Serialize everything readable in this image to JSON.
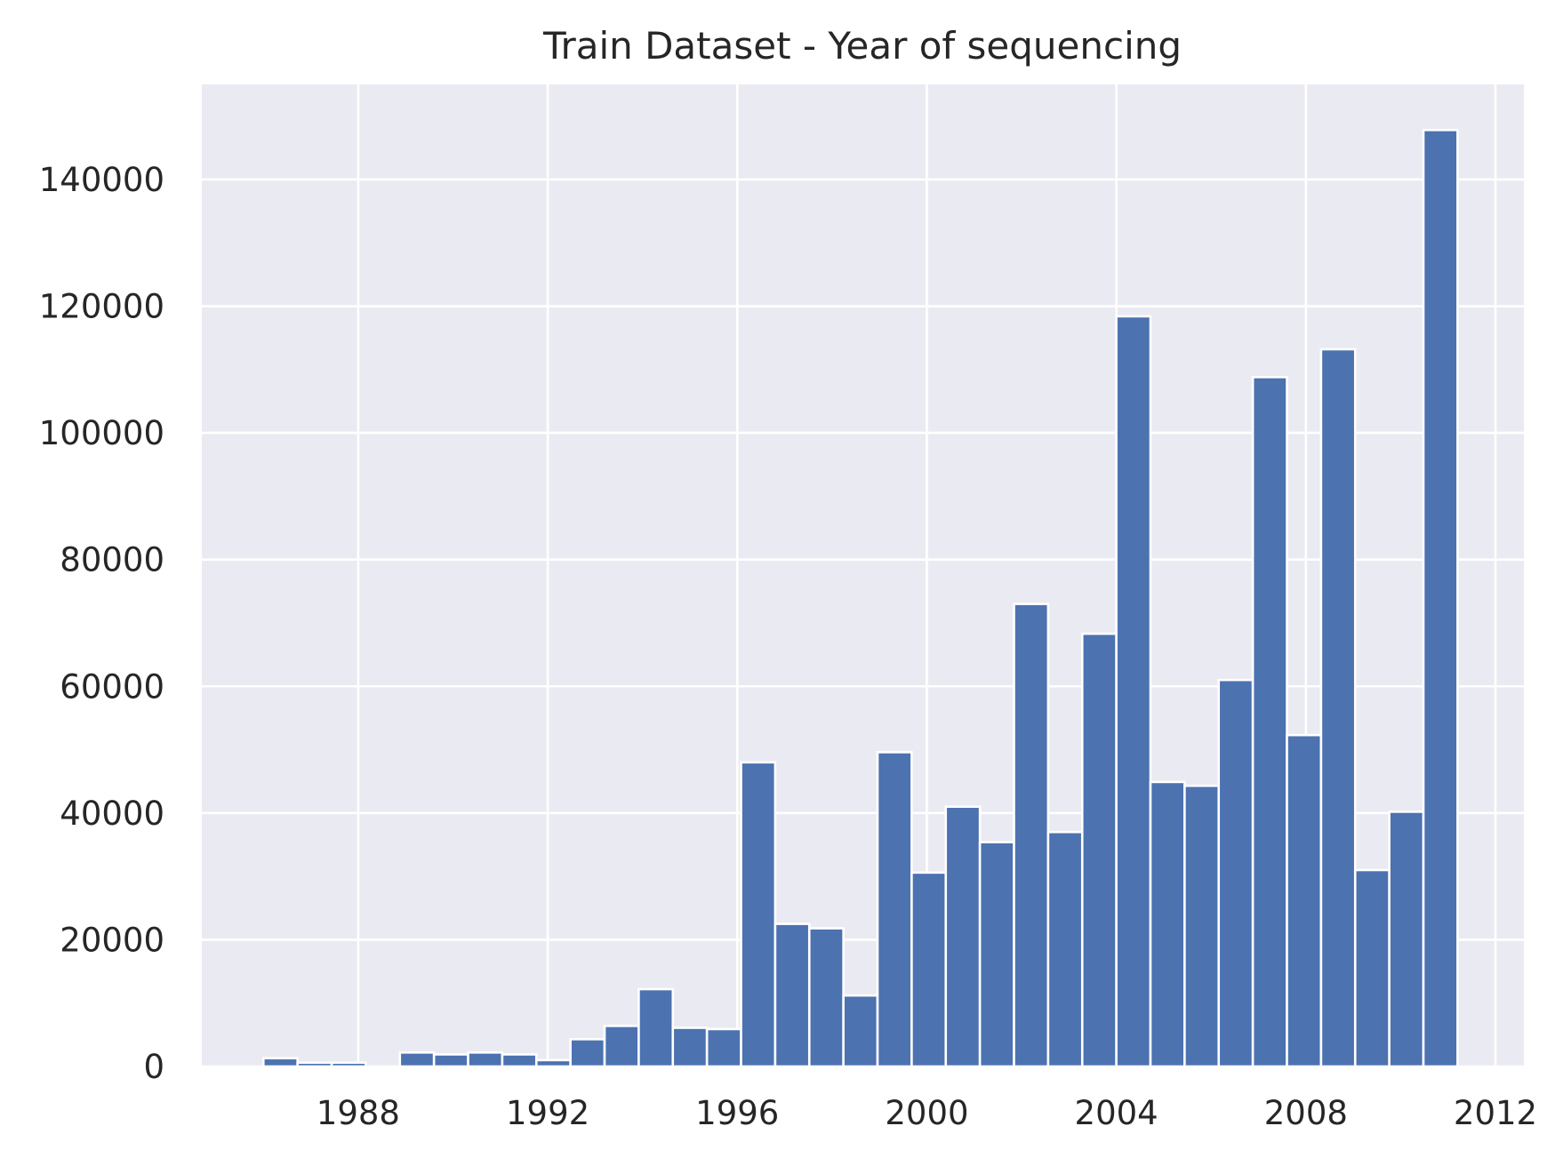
{
  "chart_data": {
    "type": "bar",
    "title": "Train Dataset - Year of sequencing",
    "xlabel": "",
    "ylabel": "",
    "xlim": [
      1984.7,
      2012.6
    ],
    "ylim": [
      0,
      155000
    ],
    "x_ticks": [
      1988,
      1992,
      1996,
      2000,
      2004,
      2008,
      2012
    ],
    "y_ticks": [
      0,
      20000,
      40000,
      60000,
      80000,
      100000,
      120000,
      140000
    ],
    "grid": true,
    "bin_start": 1986.0,
    "bin_width": 0.72,
    "values": [
      1300,
      600,
      600,
      0,
      2200,
      1900,
      2200,
      1900,
      1000,
      4300,
      6400,
      12200,
      6100,
      5900,
      48000,
      22500,
      21800,
      11200,
      49600,
      30600,
      41000,
      35400,
      73000,
      37000,
      68300,
      118400,
      44900,
      44300,
      61000,
      108800,
      52300,
      113200,
      31000,
      40200,
      147800
    ],
    "colors": {
      "bar": "#4c72b0",
      "plot_background": "#eaeaf2",
      "grid": "#ffffff",
      "text": "#262626"
    }
  }
}
